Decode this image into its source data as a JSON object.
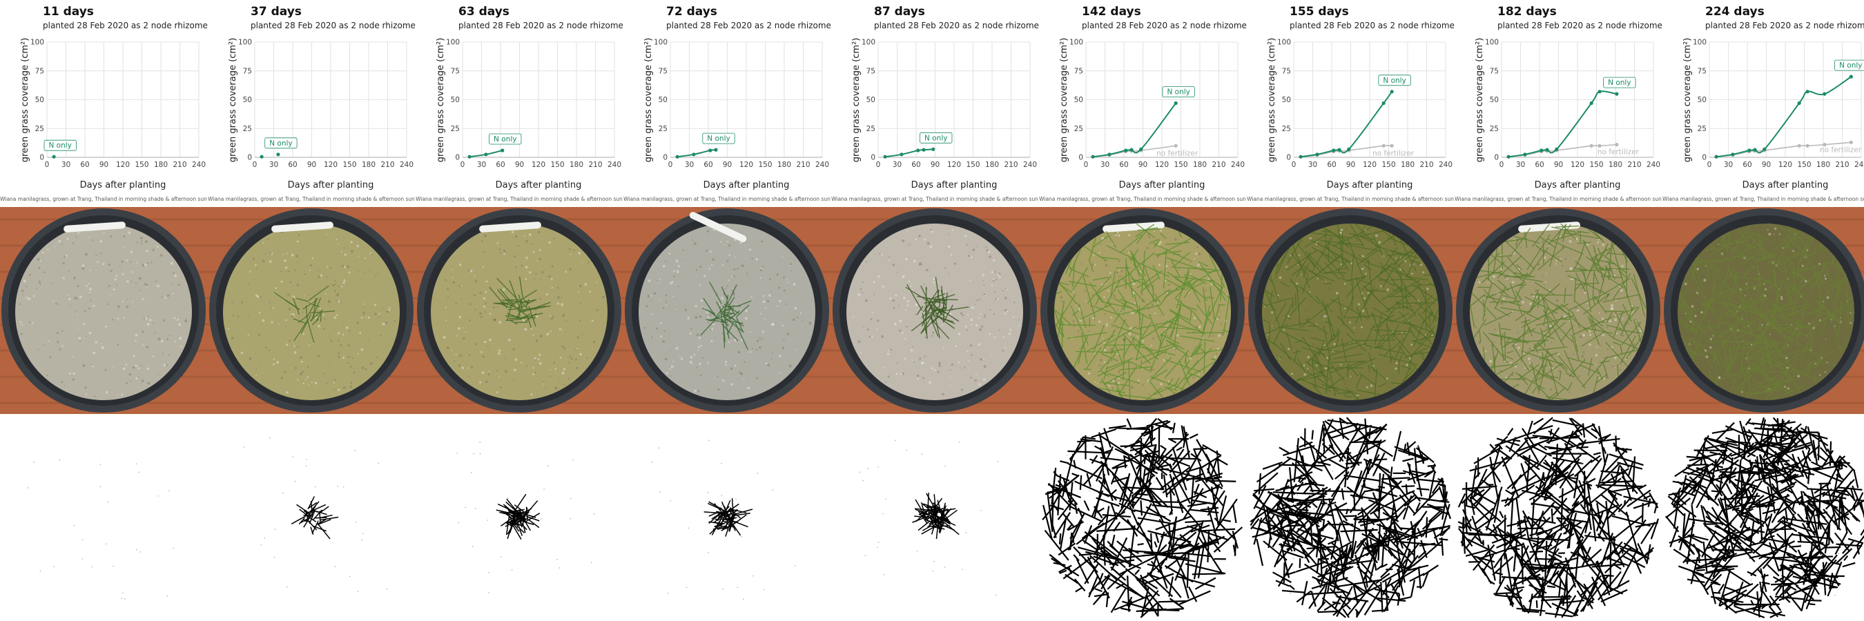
{
  "figure": {
    "subtitle": "planted 28 Feb 2020 as 2 node rhizomes",
    "xlabel": "Days after planting",
    "ylabel": "green grass coverage (cm²)",
    "caption": "Wiana manilagrass, grown at Trang, Thailand in morning shade & afternoon sun",
    "series_labels": {
      "n_only": "N only",
      "no_fertilizer": "no fertilizer"
    },
    "x_ticks": [
      "0",
      "30",
      "60",
      "90",
      "120",
      "150",
      "180",
      "210",
      "240"
    ],
    "y_ticks": [
      "0",
      "25",
      "50",
      "75",
      "100"
    ],
    "colors": {
      "n_only": "#1a8a68",
      "no_fertilizer": "#b9b9b9",
      "grid": "#e2e2e2",
      "brick": "#b5643f",
      "pot": "#3b4046"
    }
  },
  "panels": [
    {
      "day_label": "11  days"
    },
    {
      "day_label": "37  days"
    },
    {
      "day_label": "63  days"
    },
    {
      "day_label": "72  days"
    },
    {
      "day_label": "87  days"
    },
    {
      "day_label": "142  days"
    },
    {
      "day_label": "155  days"
    },
    {
      "day_label": "182  days"
    },
    {
      "day_label": "224  days"
    }
  ],
  "chart_data": [
    {
      "type": "scatter",
      "title": "11  days",
      "xlim": [
        0,
        240
      ],
      "ylim": [
        0,
        100
      ],
      "series": [
        {
          "name": "N only",
          "x": [
            11
          ],
          "y": [
            0.5
          ]
        }
      ]
    },
    {
      "type": "scatter",
      "title": "37  days",
      "xlim": [
        0,
        240
      ],
      "ylim": [
        0,
        100
      ],
      "series": [
        {
          "name": "N only",
          "x": [
            11,
            37
          ],
          "y": [
            0.5,
            2.5
          ]
        }
      ]
    },
    {
      "type": "line",
      "title": "63  days",
      "xlim": [
        0,
        240
      ],
      "ylim": [
        0,
        100
      ],
      "series": [
        {
          "name": "N only",
          "x": [
            11,
            37,
            63
          ],
          "y": [
            0.5,
            2.5,
            6
          ]
        }
      ]
    },
    {
      "type": "line",
      "title": "72  days",
      "xlim": [
        0,
        240
      ],
      "ylim": [
        0,
        100
      ],
      "series": [
        {
          "name": "N only",
          "x": [
            11,
            37,
            63,
            72
          ],
          "y": [
            0.5,
            2.5,
            6,
            6.5
          ]
        }
      ]
    },
    {
      "type": "line",
      "title": "87  days",
      "xlim": [
        0,
        240
      ],
      "ylim": [
        0,
        100
      ],
      "series": [
        {
          "name": "N only",
          "x": [
            11,
            37,
            63,
            72,
            87
          ],
          "y": [
            0.5,
            2.5,
            6,
            6.5,
            7
          ]
        }
      ]
    },
    {
      "type": "line",
      "title": "142  days",
      "xlim": [
        0,
        240
      ],
      "ylim": [
        0,
        100
      ],
      "series": [
        {
          "name": "N only",
          "x": [
            11,
            37,
            63,
            72,
            87,
            142
          ],
          "y": [
            0.5,
            2.5,
            6,
            6.5,
            7,
            47
          ]
        },
        {
          "name": "no fertilizer",
          "x": [
            11,
            37,
            63,
            72,
            87,
            142
          ],
          "y": [
            0.5,
            2,
            5,
            5.5,
            6,
            10
          ]
        }
      ]
    },
    {
      "type": "line",
      "title": "155  days",
      "xlim": [
        0,
        240
      ],
      "ylim": [
        0,
        100
      ],
      "series": [
        {
          "name": "N only",
          "x": [
            11,
            37,
            63,
            72,
            87,
            142,
            155
          ],
          "y": [
            0.5,
            2.5,
            6,
            6.5,
            7,
            47,
            57
          ]
        },
        {
          "name": "no fertilizer",
          "x": [
            11,
            37,
            63,
            72,
            87,
            142,
            155
          ],
          "y": [
            0.5,
            2,
            5,
            5.5,
            6,
            10,
            10
          ]
        }
      ]
    },
    {
      "type": "line",
      "title": "182  days",
      "xlim": [
        0,
        240
      ],
      "ylim": [
        0,
        100
      ],
      "series": [
        {
          "name": "N only",
          "x": [
            11,
            37,
            63,
            72,
            87,
            142,
            155,
            182
          ],
          "y": [
            0.5,
            2.5,
            6,
            6.5,
            7,
            47,
            57,
            55
          ]
        },
        {
          "name": "no fertilizer",
          "x": [
            11,
            37,
            63,
            72,
            87,
            142,
            155,
            182
          ],
          "y": [
            0.5,
            2,
            5,
            5.5,
            6,
            10,
            10,
            11
          ]
        }
      ]
    },
    {
      "type": "line",
      "title": "224  days",
      "xlim": [
        0,
        240
      ],
      "ylim": [
        0,
        100
      ],
      "series": [
        {
          "name": "N only",
          "x": [
            11,
            37,
            63,
            72,
            87,
            142,
            155,
            182,
            224
          ],
          "y": [
            0.5,
            2.5,
            6,
            6.5,
            7,
            47,
            57,
            55,
            70
          ]
        },
        {
          "name": "no fertilizer",
          "x": [
            11,
            37,
            63,
            72,
            87,
            142,
            155,
            182,
            224
          ],
          "y": [
            0.5,
            2,
            5,
            5.5,
            6,
            10,
            10,
            11,
            13
          ]
        }
      ]
    }
  ],
  "photos": [
    {
      "soil": "#b7b3a4",
      "grass": "#3f6b2b",
      "density": 0.0,
      "has_label_stick": true
    },
    {
      "soil": "#aaa56f",
      "grass": "#4d6e2a",
      "density": 0.05,
      "has_label_stick": true
    },
    {
      "soil": "#aba46f",
      "grass": "#466a2a",
      "density": 0.1,
      "has_label_stick": true
    },
    {
      "soil": "#aeaea4",
      "grass": "#3e6a35",
      "density": 0.09,
      "has_label_stick": true
    },
    {
      "soil": "#c0b9ae",
      "grass": "#3c5a25",
      "density": 0.12,
      "has_label_stick": false
    },
    {
      "soil": "#a8a066",
      "grass": "#5f8f30",
      "density": 0.55,
      "has_label_stick": true
    },
    {
      "soil": "#7a7a40",
      "grass": "#506b25",
      "density": 0.65,
      "has_label_stick": false
    },
    {
      "soil": "#a39b70",
      "grass": "#5d7e31",
      "density": 0.6,
      "has_label_stick": true
    },
    {
      "soil": "#6f6c40",
      "grass": "#6a7d35",
      "density": 0.75,
      "has_label_stick": false
    }
  ]
}
